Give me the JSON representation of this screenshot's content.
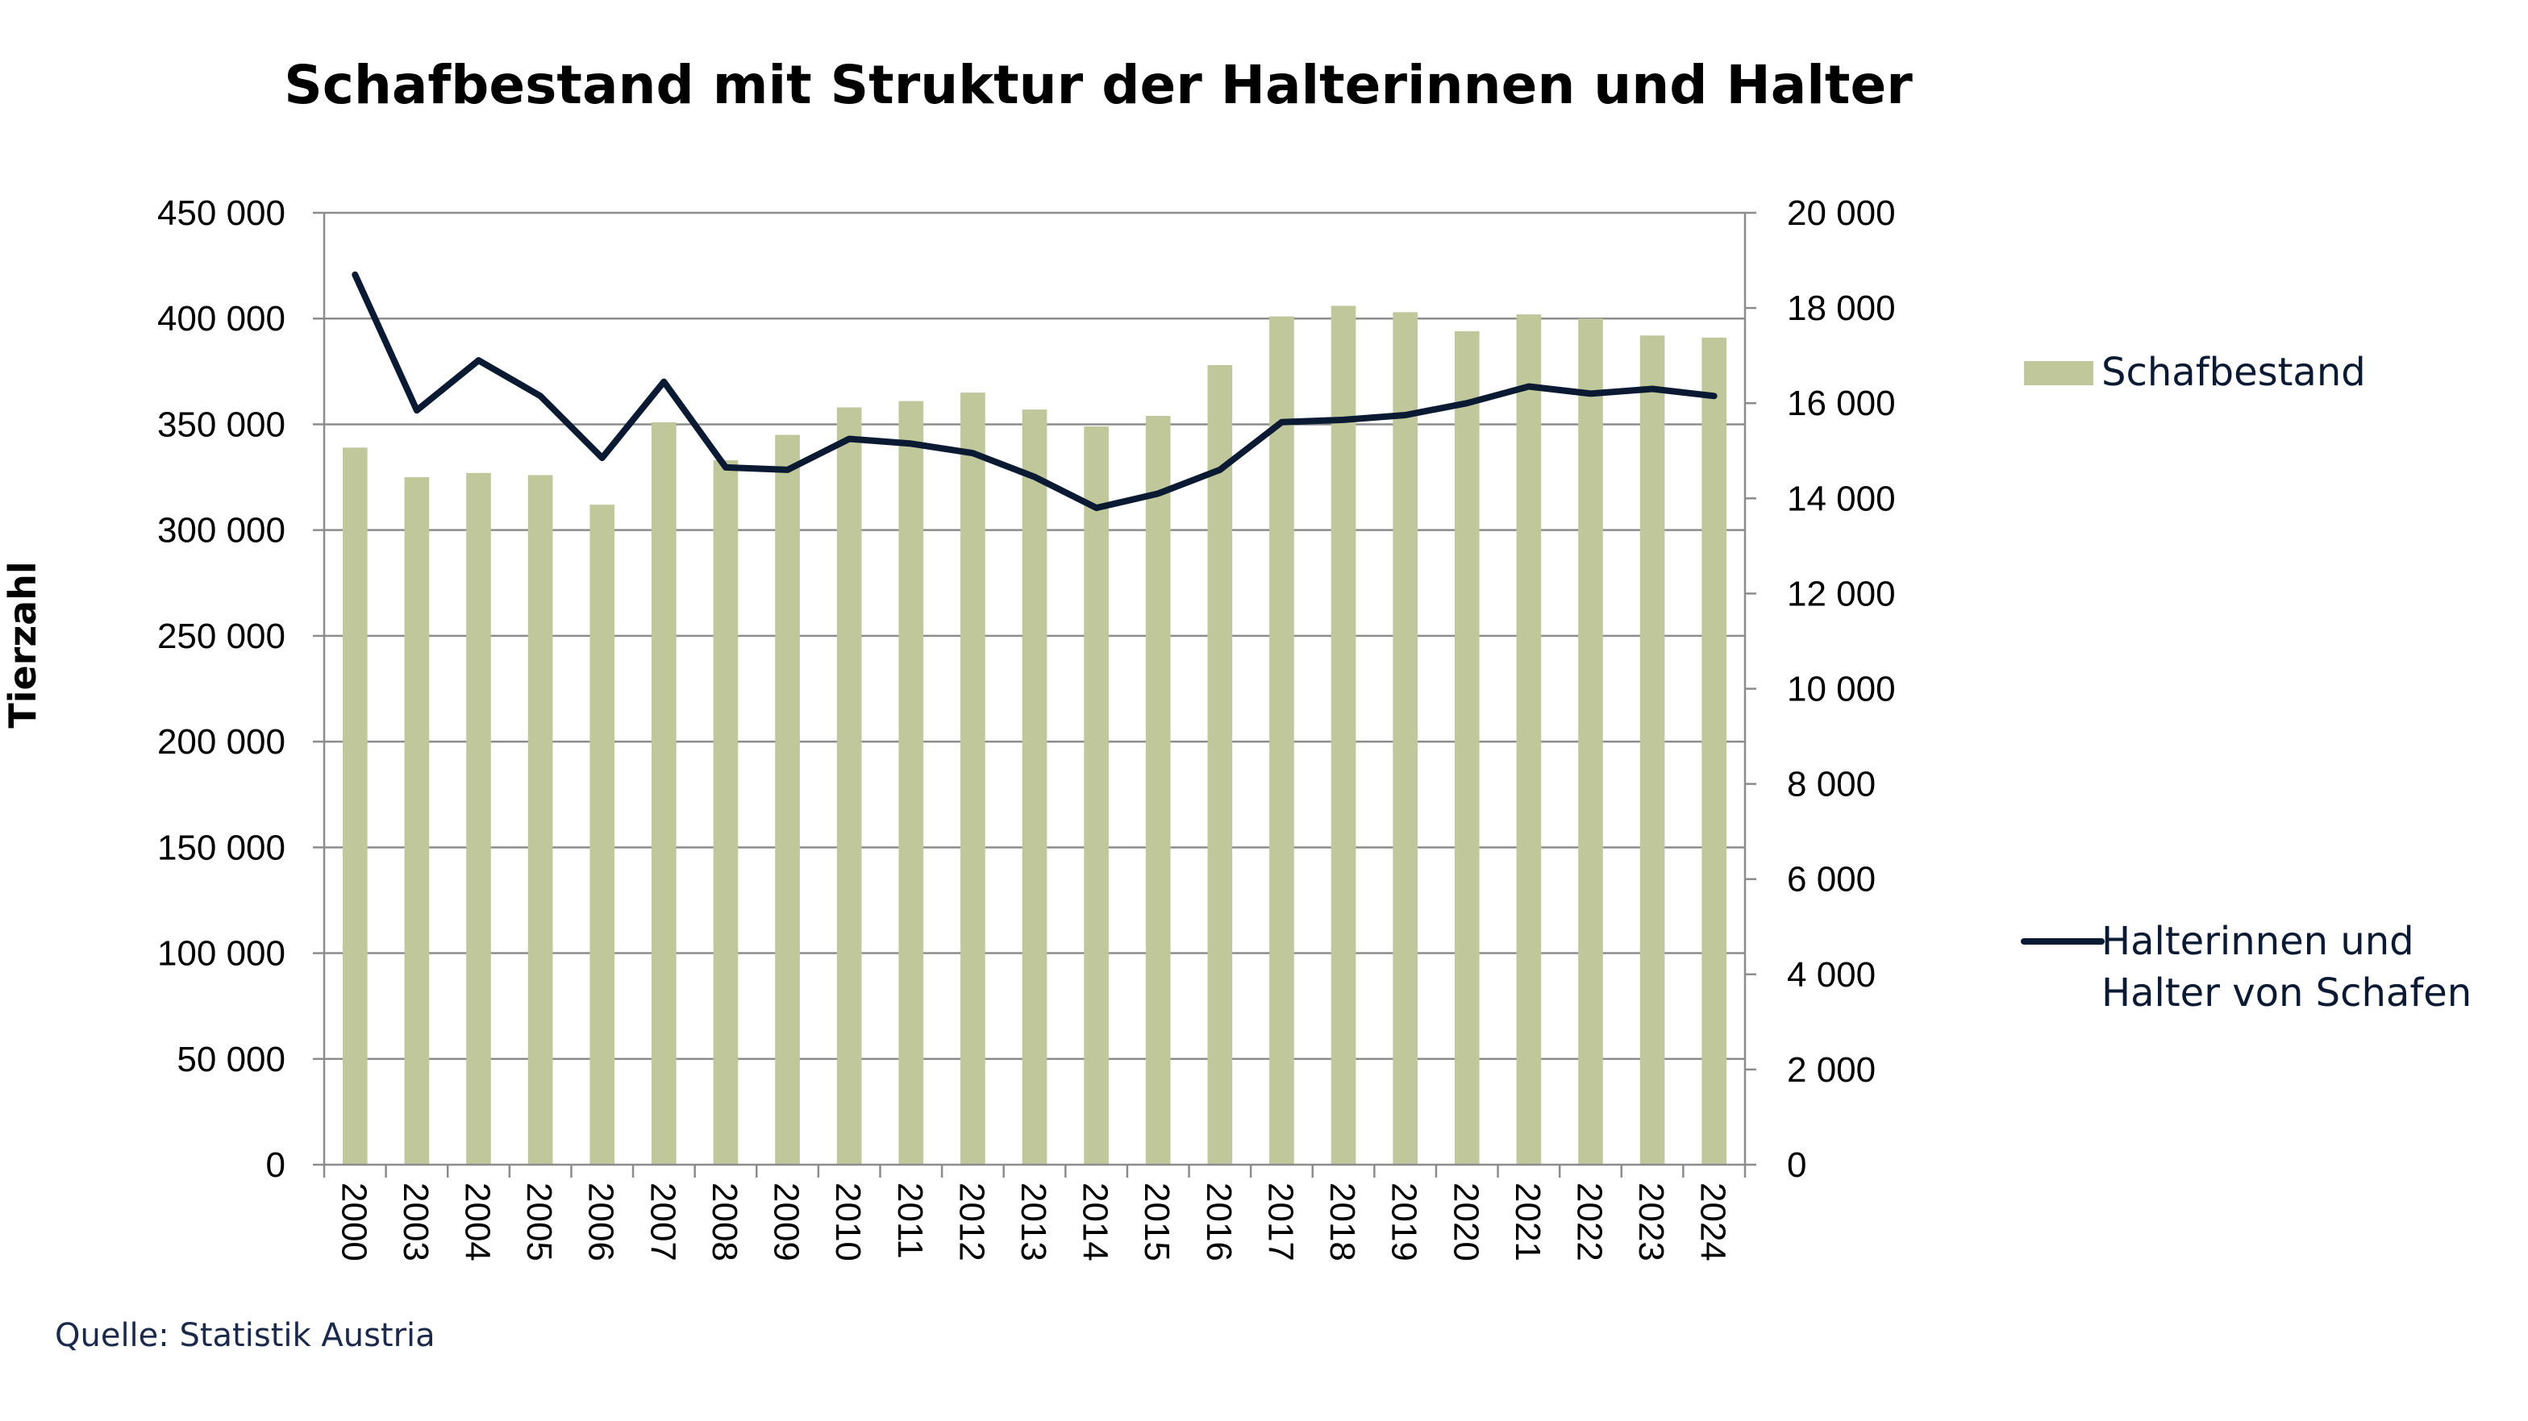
{
  "chart_data": {
    "type": "bar",
    "title": "Schafbestand mit Struktur der Halterinnen und Halter",
    "ylabel": "Tierzahl",
    "y2label": "",
    "source": "Quelle: Statistik Austria",
    "categories": [
      "2000",
      "2003",
      "2004",
      "2005",
      "2006",
      "2007",
      "2008",
      "2009",
      "2010",
      "2011",
      "2012",
      "2013",
      "2014",
      "2015",
      "2016",
      "2017",
      "2018",
      "2019",
      "2020",
      "2021",
      "2022",
      "2023",
      "2024"
    ],
    "ylim": [
      0,
      450000
    ],
    "y2lim": [
      0,
      20000
    ],
    "y_ticks": [
      "0",
      "50 000",
      "100 000",
      "150 000",
      "200 000",
      "250 000",
      "300 000",
      "350 000",
      "400 000",
      "450 000"
    ],
    "y2_ticks": [
      "0",
      "2 000",
      "4 000",
      "6 000",
      "8 000",
      "10 000",
      "12 000",
      "14 000",
      "16 000",
      "18 000",
      "20 000"
    ],
    "grid": true,
    "legend_position": "right",
    "series": [
      {
        "name": "Schafbestand",
        "type": "bar",
        "axis": "left",
        "color": "#bfc79b",
        "values": [
          339000,
          325000,
          327000,
          326000,
          312000,
          351000,
          333000,
          345000,
          358000,
          361000,
          365000,
          357000,
          349000,
          354000,
          378000,
          401000,
          406000,
          403000,
          394000,
          402000,
          400000,
          392000,
          391000
        ]
      },
      {
        "name_lines": [
          "Halterinnen und",
          "Halter von Schafen"
        ],
        "type": "line",
        "axis": "right",
        "color": "#0b1a33",
        "values": [
          18700,
          15850,
          16900,
          16150,
          14850,
          16450,
          14650,
          14600,
          15250,
          15150,
          14950,
          14450,
          13800,
          14100,
          14600,
          15600,
          15650,
          15750,
          16000,
          16350,
          16200,
          16300,
          16150
        ]
      }
    ]
  }
}
